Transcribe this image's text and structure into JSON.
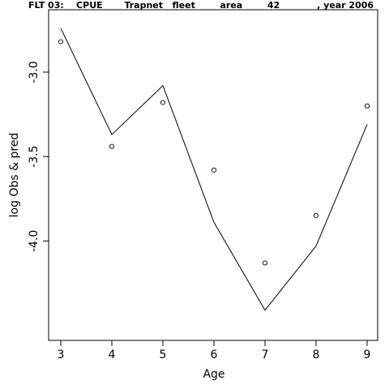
{
  "chart_data": {
    "type": "line",
    "title": "FLT 03:    CPUE       Trapnet   fleet        area        42            , year 2006",
    "xlabel": "Age",
    "ylabel": "log Obs & pred",
    "x": [
      3,
      4,
      5,
      6,
      7,
      8,
      9
    ],
    "xlim": [
      3,
      9
    ],
    "ylim": [
      -4.5,
      -2.7
    ],
    "x_ticks": [
      "3",
      "4",
      "5",
      "6",
      "7",
      "8",
      "9"
    ],
    "y_ticks": [
      {
        "value": -3.0,
        "label": "-3.0"
      },
      {
        "value": -3.5,
        "label": "-3.5"
      },
      {
        "value": -4.0,
        "label": "-4.0"
      }
    ],
    "series": [
      {
        "style": "points",
        "marker": "open-circle",
        "values": [
          -2.82,
          -3.44,
          -3.18,
          -3.58,
          -4.13,
          -3.85,
          -3.2
        ]
      },
      {
        "style": "line",
        "values": [
          -2.74,
          -3.37,
          -3.08,
          -3.89,
          -4.41,
          -4.03,
          -3.31
        ]
      }
    ],
    "grid": false,
    "legend": "none"
  }
}
